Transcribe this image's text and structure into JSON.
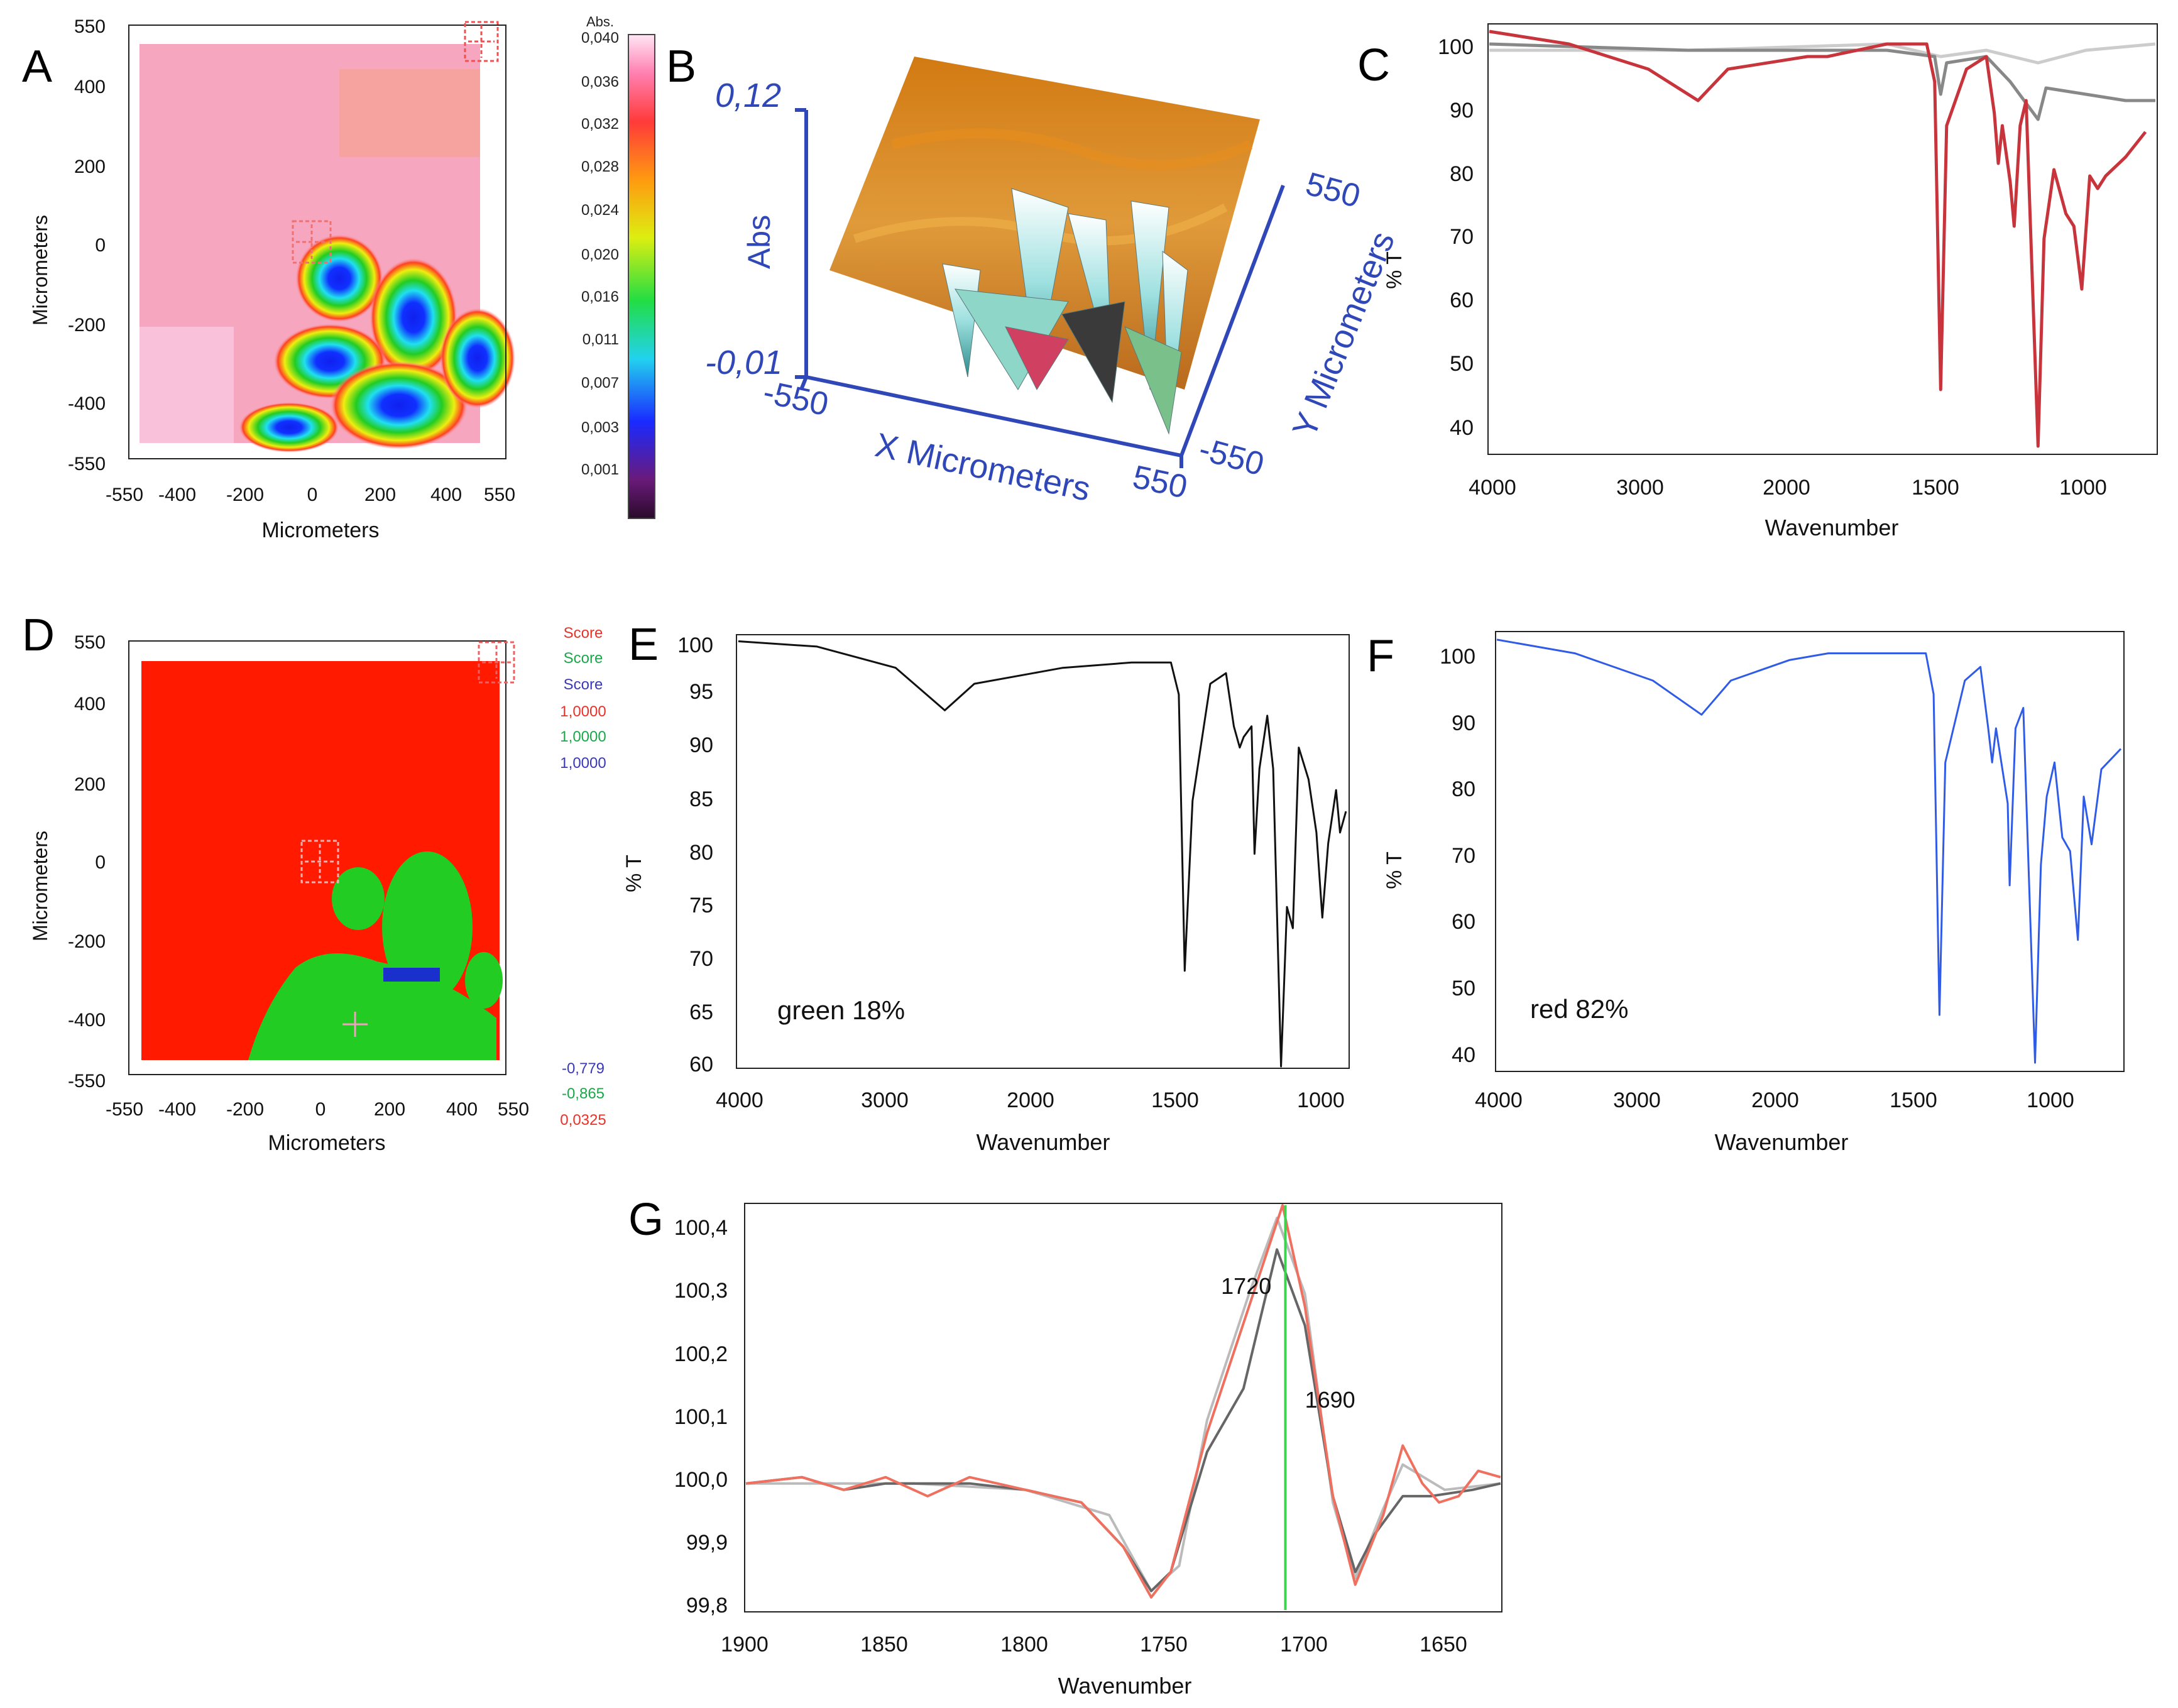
{
  "panel_labels": {
    "A": "A",
    "B": "B",
    "C": "C",
    "D": "D",
    "E": "E",
    "F": "F",
    "G": "G"
  },
  "colors": {
    "blue_text": "#3047b8",
    "spectrum_red": "#c8343c",
    "spectrum_blue": "#2f5be6",
    "spectrum_black": "#111111",
    "green_marker": "#3fd24f",
    "map_red": "#ff1a00",
    "map_green": "#22cc22",
    "map_pink": "#f7a9c0"
  },
  "panelA": {
    "ylabel": "Micrometers",
    "xlabel": "Micrometers",
    "ticks": [
      "550",
      "400",
      "200",
      "0",
      "-200",
      "-400",
      "-550"
    ],
    "xticks": [
      "-550",
      "-400",
      "-200",
      "0",
      "200",
      "400",
      "550"
    ],
    "colorbar_title": "Abs.",
    "colorbar_ticks": [
      "0,040",
      "0,036",
      "0,032",
      "0,028",
      "0,024",
      "0,020",
      "0,016",
      "0,011",
      "0,007",
      "0,003",
      "0,001"
    ]
  },
  "panelB": {
    "zlabel": "Abs",
    "z_top": "0,12",
    "z_bottom": "-0,01",
    "x_min": "-550",
    "x_max": "550",
    "xlabel": "X Micrometers",
    "y_min": "-550",
    "y_max": "550",
    "ylabel": "Y Micrometers"
  },
  "panelD": {
    "ylabel": "Micrometers",
    "xlabel": "Micrometers",
    "ticks": [
      "550",
      "400",
      "200",
      "0",
      "-200",
      "-400",
      "-550"
    ],
    "xticks": [
      "-550",
      "-400",
      "-200",
      "0",
      "200",
      "400",
      "550"
    ],
    "legend_top": [
      "Score",
      "Score",
      "Score",
      "1,0000",
      "1,0000",
      "1,0000"
    ],
    "legend_bottom": [
      "-0,779",
      "-0,865",
      "0,0325"
    ]
  },
  "chart_data": [
    {
      "id": "C",
      "type": "line",
      "xlabel": "Wavenumber",
      "ylabel": "% T",
      "xlim": [
        4000,
        650
      ],
      "ylim": [
        36,
        104
      ],
      "xticks": [
        "4000",
        "3000",
        "2000",
        "1500",
        "1000"
      ],
      "yticks": [
        "100",
        "90",
        "80",
        "70",
        "60",
        "50",
        "40"
      ],
      "series": [
        {
          "color": "#c8343c",
          "points": [
            [
              4000,
              103
            ],
            [
              3600,
              101
            ],
            [
              3200,
              97
            ],
            [
              2950,
              92
            ],
            [
              2800,
              97
            ],
            [
              2400,
              99
            ],
            [
              2300,
              99
            ],
            [
              2000,
              101
            ],
            [
              1800,
              101
            ],
            [
              1760,
              95
            ],
            [
              1730,
              46
            ],
            [
              1700,
              88
            ],
            [
              1600,
              97
            ],
            [
              1500,
              99
            ],
            [
              1460,
              90
            ],
            [
              1440,
              82
            ],
            [
              1420,
              88
            ],
            [
              1380,
              79
            ],
            [
              1360,
              72
            ],
            [
              1330,
              88
            ],
            [
              1300,
              92
            ],
            [
              1240,
              37
            ],
            [
              1210,
              70
            ],
            [
              1160,
              81
            ],
            [
              1100,
              74
            ],
            [
              1060,
              72
            ],
            [
              1020,
              62
            ],
            [
              980,
              80
            ],
            [
              940,
              78
            ],
            [
              900,
              80
            ],
            [
              800,
              83
            ],
            [
              700,
              87
            ]
          ]
        },
        {
          "color": "#888888",
          "points": [
            [
              4000,
              101
            ],
            [
              3000,
              100
            ],
            [
              2000,
              100
            ],
            [
              1760,
              99
            ],
            [
              1730,
              93
            ],
            [
              1700,
              98
            ],
            [
              1500,
              99
            ],
            [
              1440,
              97
            ],
            [
              1380,
              95
            ],
            [
              1240,
              89
            ],
            [
              1200,
              94
            ],
            [
              1000,
              93
            ],
            [
              800,
              92
            ],
            [
              650,
              92
            ]
          ]
        },
        {
          "color": "#cccccc",
          "points": [
            [
              4000,
              100
            ],
            [
              3000,
              100
            ],
            [
              2000,
              101
            ],
            [
              1730,
              99
            ],
            [
              1500,
              100
            ],
            [
              1240,
              98
            ],
            [
              1000,
              100
            ],
            [
              650,
              101
            ]
          ]
        }
      ]
    },
    {
      "id": "E",
      "type": "line",
      "annotation": "green 18%",
      "xlabel": "Wavenumber",
      "ylabel": "% T",
      "xlim": [
        4000,
        900
      ],
      "ylim": [
        60,
        100.5
      ],
      "xticks": [
        "4000",
        "3000",
        "2000",
        "1500",
        "1000"
      ],
      "yticks": [
        "100",
        "95",
        "90",
        "85",
        "80",
        "75",
        "70",
        "65",
        "60"
      ],
      "series": [
        {
          "color": "#111111",
          "points": [
            [
              4000,
              100
            ],
            [
              3600,
              99.5
            ],
            [
              3200,
              97.5
            ],
            [
              2950,
              93.5
            ],
            [
              2800,
              96
            ],
            [
              2500,
              97
            ],
            [
              2350,
              97.5
            ],
            [
              2000,
              98
            ],
            [
              1800,
              98
            ],
            [
              1760,
              95
            ],
            [
              1730,
              69
            ],
            [
              1690,
              85
            ],
            [
              1600,
              96
            ],
            [
              1520,
              97
            ],
            [
              1480,
              92
            ],
            [
              1450,
              90
            ],
            [
              1430,
              91
            ],
            [
              1390,
              92
            ],
            [
              1375,
              80
            ],
            [
              1350,
              88
            ],
            [
              1310,
              93
            ],
            [
              1280,
              88
            ],
            [
              1240,
              60
            ],
            [
              1210,
              75
            ],
            [
              1180,
              73
            ],
            [
              1150,
              90
            ],
            [
              1100,
              87
            ],
            [
              1060,
              82
            ],
            [
              1030,
              74
            ],
            [
              1000,
              81
            ],
            [
              960,
              86
            ],
            [
              940,
              82
            ],
            [
              910,
              84
            ]
          ]
        }
      ]
    },
    {
      "id": "F",
      "type": "line",
      "annotation": "red 82%",
      "xlabel": "Wavenumber",
      "ylabel": "% T",
      "xlim": [
        4000,
        800
      ],
      "ylim": [
        40,
        104
      ],
      "xticks": [
        "4000",
        "3000",
        "2000",
        "1500",
        "1000"
      ],
      "yticks": [
        "100",
        "90",
        "80",
        "70",
        "60",
        "50",
        "40"
      ],
      "series": [
        {
          "color": "#2f5be6",
          "points": [
            [
              4000,
              103
            ],
            [
              3600,
              101
            ],
            [
              3200,
              97
            ],
            [
              2950,
              92
            ],
            [
              2800,
              97
            ],
            [
              2500,
              100
            ],
            [
              2300,
              101
            ],
            [
              2000,
              101
            ],
            [
              1800,
              101
            ],
            [
              1760,
              95
            ],
            [
              1730,
              48
            ],
            [
              1700,
              85
            ],
            [
              1600,
              97
            ],
            [
              1520,
              99
            ],
            [
              1480,
              90
            ],
            [
              1460,
              85
            ],
            [
              1440,
              90
            ],
            [
              1380,
              79
            ],
            [
              1370,
              67
            ],
            [
              1340,
              90
            ],
            [
              1300,
              93
            ],
            [
              1240,
              41
            ],
            [
              1210,
              70
            ],
            [
              1180,
              80
            ],
            [
              1140,
              85
            ],
            [
              1100,
              74
            ],
            [
              1060,
              72
            ],
            [
              1020,
              59
            ],
            [
              990,
              80
            ],
            [
              950,
              73
            ],
            [
              900,
              84
            ],
            [
              800,
              87
            ]
          ]
        }
      ]
    },
    {
      "id": "G",
      "type": "line",
      "xlabel": "Wavenumber",
      "xlim": [
        1900,
        1630
      ],
      "ylim": [
        99.8,
        100.44
      ],
      "xticks": [
        "1900",
        "1850",
        "1800",
        "1750",
        "1700",
        "1650"
      ],
      "yticks": [
        "100,4",
        "100,3",
        "100,2",
        "100,1",
        "100,0",
        "99,9",
        "99,8"
      ],
      "annotations": [
        {
          "text": "1720",
          "x": 1721,
          "y": 100.3
        },
        {
          "text": "1690",
          "x": 1691,
          "y": 100.12
        }
      ],
      "marker_x": 1707,
      "series": [
        {
          "color": "#f07060",
          "points": [
            [
              1900,
              100
            ],
            [
              1880,
              100.01
            ],
            [
              1865,
              99.99
            ],
            [
              1850,
              100.01
            ],
            [
              1835,
              99.98
            ],
            [
              1820,
              100.01
            ],
            [
              1800,
              99.99
            ],
            [
              1780,
              99.97
            ],
            [
              1765,
              99.9
            ],
            [
              1755,
              99.82
            ],
            [
              1748,
              99.86
            ],
            [
              1735,
              100.08
            ],
            [
              1720,
              100.28
            ],
            [
              1708,
              100.44
            ],
            [
              1700,
              100.28
            ],
            [
              1690,
              99.98
            ],
            [
              1682,
              99.84
            ],
            [
              1672,
              99.95
            ],
            [
              1665,
              100.06
            ],
            [
              1658,
              100.0
            ],
            [
              1652,
              99.97
            ],
            [
              1645,
              99.98
            ],
            [
              1638,
              100.02
            ],
            [
              1630,
              100.01
            ]
          ]
        },
        {
          "color": "#666666",
          "points": [
            [
              1900,
              100
            ],
            [
              1880,
              100.01
            ],
            [
              1865,
              99.99
            ],
            [
              1850,
              100.0
            ],
            [
              1820,
              100.0
            ],
            [
              1800,
              99.99
            ],
            [
              1780,
              99.97
            ],
            [
              1765,
              99.9
            ],
            [
              1755,
              99.83
            ],
            [
              1748,
              99.86
            ],
            [
              1735,
              100.05
            ],
            [
              1722,
              100.15
            ],
            [
              1710,
              100.37
            ],
            [
              1700,
              100.25
            ],
            [
              1690,
              99.98
            ],
            [
              1682,
              99.86
            ],
            [
              1675,
              99.92
            ],
            [
              1665,
              99.98
            ],
            [
              1655,
              99.98
            ],
            [
              1640,
              99.99
            ],
            [
              1630,
              100.0
            ]
          ]
        },
        {
          "color": "#bbbbbb",
          "points": [
            [
              1900,
              100
            ],
            [
              1870,
              100.0
            ],
            [
              1840,
              100.0
            ],
            [
              1800,
              99.99
            ],
            [
              1770,
              99.95
            ],
            [
              1755,
              99.83
            ],
            [
              1745,
              99.87
            ],
            [
              1735,
              100.1
            ],
            [
              1720,
              100.3
            ],
            [
              1710,
              100.42
            ],
            [
              1700,
              100.3
            ],
            [
              1690,
              99.97
            ],
            [
              1682,
              99.85
            ],
            [
              1672,
              99.96
            ],
            [
              1665,
              100.03
            ],
            [
              1650,
              99.99
            ],
            [
              1630,
              100.0
            ]
          ]
        }
      ]
    }
  ]
}
